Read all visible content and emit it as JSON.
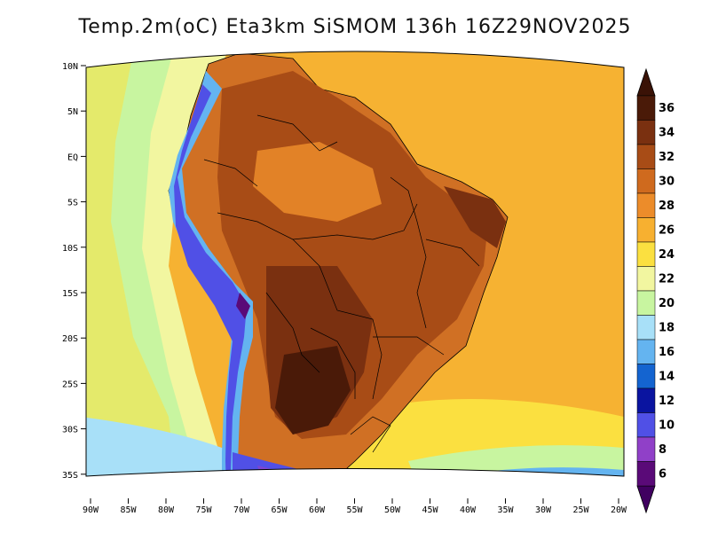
{
  "title": "Temp.2m(oC) Eta3km SiSMOM 136h 16Z29NOV2025",
  "map": {
    "variable": "2 m temperature",
    "units": "oC",
    "lat_labels": [
      "10N",
      "5N",
      "EQ",
      "5S",
      "10S",
      "15S",
      "20S",
      "25S",
      "30S",
      "35S"
    ],
    "lon_labels": [
      "90W",
      "85W",
      "80W",
      "75W",
      "70W",
      "65W",
      "60W",
      "55W",
      "50W",
      "45W",
      "40W",
      "35W",
      "30W",
      "25W",
      "20W"
    ]
  },
  "colorbar": {
    "labels": [
      "36",
      "34",
      "32",
      "30",
      "28",
      "26",
      "24",
      "22",
      "20",
      "18",
      "16",
      "14",
      "12",
      "10",
      "8",
      "6"
    ],
    "colors": [
      "#4a1a08",
      "#7a3010",
      "#a84c16",
      "#cf6a1e",
      "#ec8c2a",
      "#f7b030",
      "#fbe040",
      "#f2f6a0",
      "#c8f5a0",
      "#a8e0f8",
      "#64b4f0",
      "#1464d0",
      "#0a14a0",
      "#5050e6",
      "#9040c8",
      "#5a0a78"
    ],
    "top_arrow_color": "#3a1206",
    "bottom_arrow_color": "#400060"
  }
}
